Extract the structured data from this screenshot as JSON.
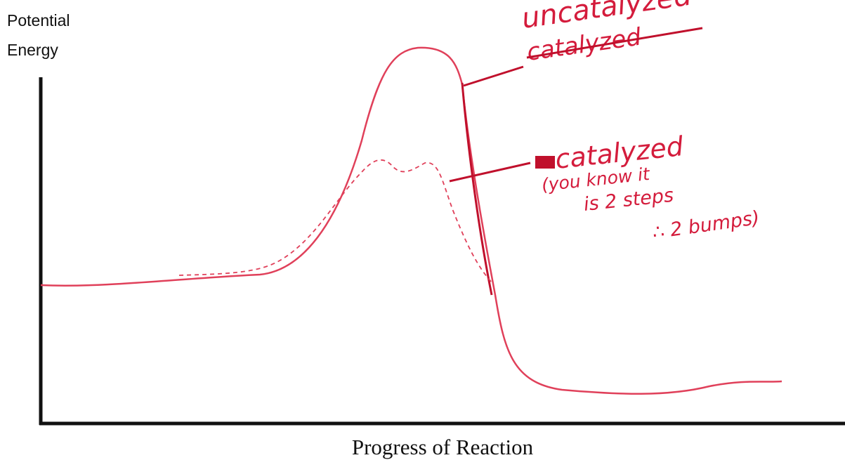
{
  "axes": {
    "y_label": [
      "Potential",
      "Energy"
    ],
    "x_label": "Progress of Reaction"
  },
  "annotations": {
    "uncatalyzed": "uncatalyzed",
    "crossed_out": "catalyzed",
    "catalyzed": {
      "title": "catalyzed",
      "lines": [
        "(you know it",
        "is 2 steps",
        "∴ 2 bumps)"
      ]
    }
  }
}
